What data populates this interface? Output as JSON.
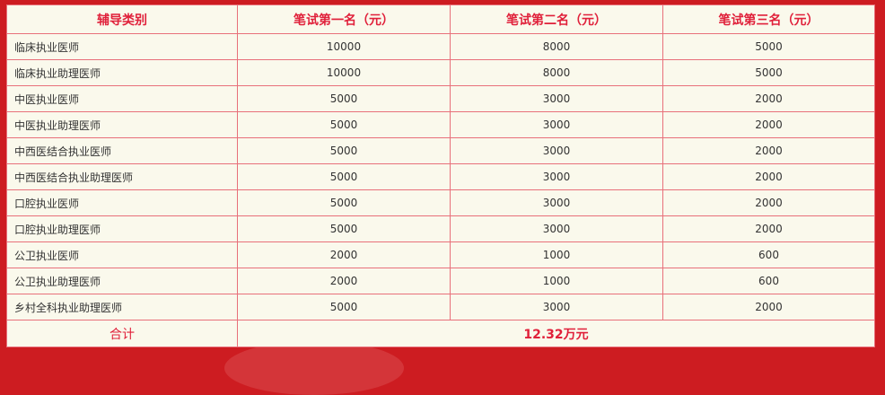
{
  "headers": [
    "辅导类别",
    "笔试第一名（元）",
    "笔试第二名（元）",
    "笔试第三名（元）"
  ],
  "rows": [
    [
      "临床执业医师",
      "10000",
      "8000",
      "5000"
    ],
    [
      "临床执业助理医师",
      "10000",
      "8000",
      "5000"
    ],
    [
      "中医执业医师",
      "5000",
      "3000",
      "2000"
    ],
    [
      "中医执业助理医师",
      "5000",
      "3000",
      "2000"
    ],
    [
      "中西医结合执业医师",
      "5000",
      "3000",
      "2000"
    ],
    [
      "中西医结合执业助理医师",
      "5000",
      "3000",
      "2000"
    ],
    [
      "口腔执业医师",
      "5000",
      "3000",
      "2000"
    ],
    [
      "口腔执业助理医师",
      "5000",
      "3000",
      "2000"
    ],
    [
      "公卫执业医师",
      "2000",
      "1000",
      "600"
    ],
    [
      "公卫执业助理医师",
      "2000",
      "1000",
      "600"
    ],
    [
      "乡村全科执业助理医师",
      "5000",
      "3000",
      "2000"
    ]
  ],
  "total": {
    "label": "合计",
    "value": "12.32万元"
  },
  "colors": {
    "background": "#cd1c21",
    "header_text": "#e0203a",
    "border": "#e8707a",
    "cell_bg": "#faf9ec"
  }
}
